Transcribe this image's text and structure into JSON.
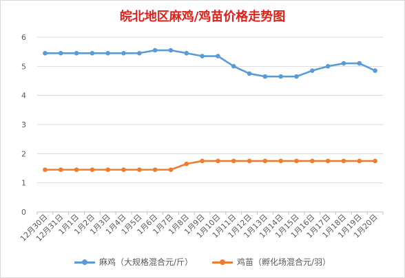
{
  "chart_data": {
    "type": "line",
    "title": "皖北地区麻鸡/鸡苗价格走势图",
    "categories": [
      "12月30日",
      "12月31日",
      "1月1日",
      "1月2日",
      "1月3日",
      "1月4日",
      "1月5日",
      "1月6日",
      "1月7日",
      "1月8日",
      "1月9日",
      "1月10日",
      "1月11日",
      "1月12日",
      "1月13日",
      "1月14日",
      "1月15日",
      "1月16日",
      "1月17日",
      "1月18日",
      "1月19日",
      "1月20日"
    ],
    "yticks": [
      "0",
      "1",
      "2",
      "3",
      "4",
      "5",
      "6"
    ],
    "ylim": [
      0,
      6
    ],
    "grid": true,
    "legend_position": "bottom",
    "series": [
      {
        "name": "麻鸡（大规格混合元/斤）",
        "color": "#5b9bd5",
        "values": [
          5.45,
          5.45,
          5.45,
          5.45,
          5.45,
          5.45,
          5.45,
          5.55,
          5.55,
          5.45,
          5.35,
          5.35,
          5.0,
          4.75,
          4.65,
          4.65,
          4.65,
          4.85,
          5.0,
          5.1,
          5.1,
          4.85
        ]
      },
      {
        "name": "鸡苗（孵化场混合元/羽）",
        "color": "#ed7d31",
        "values": [
          1.45,
          1.45,
          1.45,
          1.45,
          1.45,
          1.45,
          1.45,
          1.45,
          1.45,
          1.65,
          1.75,
          1.75,
          1.75,
          1.75,
          1.75,
          1.75,
          1.75,
          1.75,
          1.75,
          1.75,
          1.75,
          1.75
        ]
      }
    ]
  }
}
